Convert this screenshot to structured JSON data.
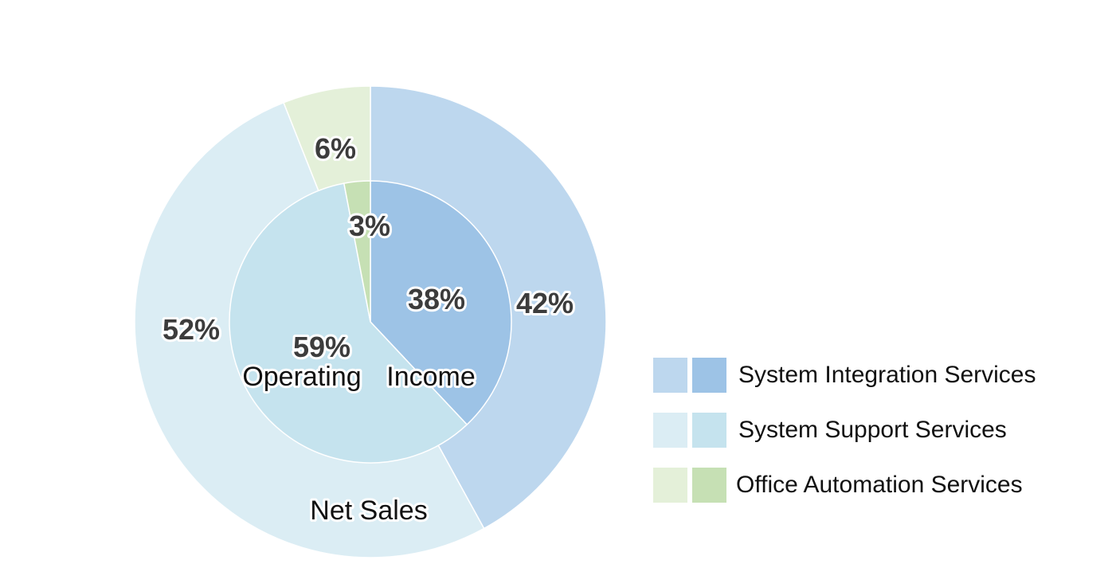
{
  "chart_data": {
    "type": "donut",
    "rings": [
      {
        "name": "Net Sales",
        "values": [
          42,
          52,
          6
        ],
        "labels": [
          "42%",
          "52%",
          "6%"
        ],
        "colors": [
          "#bdd7ee",
          "#dbedf4",
          "#e4f0d9"
        ]
      },
      {
        "name": "Operating Income",
        "values": [
          38,
          59,
          3
        ],
        "labels": [
          "38%",
          "59%",
          "3%"
        ],
        "colors": [
          "#9dc3e6",
          "#c5e3ee",
          "#c6e0b4"
        ]
      }
    ],
    "categories": [
      "System Integration Services",
      "System Support Services",
      "Office Automation Services"
    ],
    "outer_label": "Net Sales",
    "inner_label_part1": "Operating",
    "inner_label_part2": "Income",
    "legend_position": "bottom-right"
  }
}
